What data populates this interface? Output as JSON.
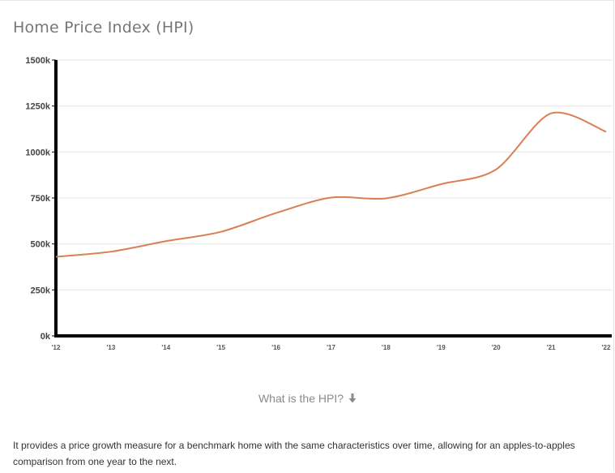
{
  "title": "Home Price Index (HPI)",
  "toggle": {
    "label": "What is the HPI?",
    "icon": "arrow-down-icon"
  },
  "description": "It provides a price growth measure for a benchmark home with the same characteristics over time, allowing for an apples-to-apples comparison from one year to the next.",
  "colors": {
    "line": "#d97f54",
    "grid": "#e5e5e5",
    "axis": "#000000"
  },
  "chart_data": {
    "type": "line",
    "title": "Home Price Index (HPI)",
    "categories": [
      "'12",
      "'13",
      "'14",
      "'15",
      "'16",
      "'17",
      "'18",
      "'19",
      "'20",
      "'21",
      "'22"
    ],
    "yticks": [
      "0k",
      "250k",
      "500k",
      "750k",
      "1000k",
      "1250k",
      "1500k"
    ],
    "ylim": [
      0,
      1500000
    ],
    "grid": true,
    "series": [
      {
        "x": [
          0,
          1,
          2,
          3,
          4,
          5,
          6,
          7,
          8,
          9,
          10
        ],
        "values": [
          430000,
          458000,
          515000,
          566000,
          668000,
          752000,
          748000,
          825000,
          905000,
          1210000,
          1110000
        ]
      }
    ]
  }
}
